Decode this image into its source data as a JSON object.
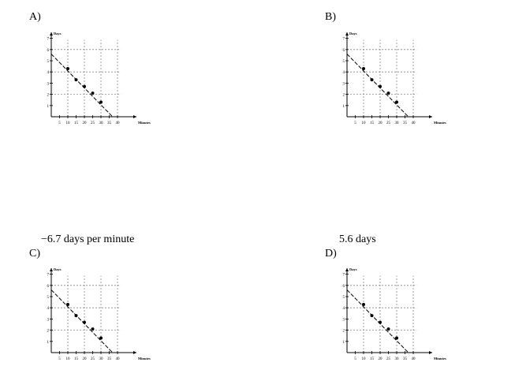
{
  "options": [
    {
      "letter": "A)",
      "answer": ""
    },
    {
      "letter": "B)",
      "answer": ""
    },
    {
      "letter": "C)",
      "answer": "−6.7 days per minute"
    },
    {
      "letter": "D)",
      "answer": "5.6 days"
    }
  ],
  "chart_data": {
    "type": "scatter",
    "title": "",
    "xlabel": "Minutes",
    "ylabel": "Days",
    "xlim": [
      0,
      45
    ],
    "ylim": [
      0,
      7
    ],
    "xticks": [
      "5",
      "10",
      "15",
      "20",
      "25",
      "30",
      "35",
      "40"
    ],
    "yticks": [
      "1",
      "2",
      "3",
      "4",
      "5",
      "6",
      "7"
    ],
    "grid": true,
    "points": [
      {
        "x": 10,
        "y": 4.3
      },
      {
        "x": 15,
        "y": 3.3
      },
      {
        "x": 20,
        "y": 2.7
      },
      {
        "x": 25,
        "y": 2.1
      },
      {
        "x": 30,
        "y": 1.3
      }
    ],
    "trend_line": {
      "from": {
        "x": 0,
        "y": 5.6
      },
      "to": {
        "x": 37,
        "y": 0
      }
    },
    "colors": {
      "marks": "#000000",
      "grid": "#888888"
    }
  }
}
